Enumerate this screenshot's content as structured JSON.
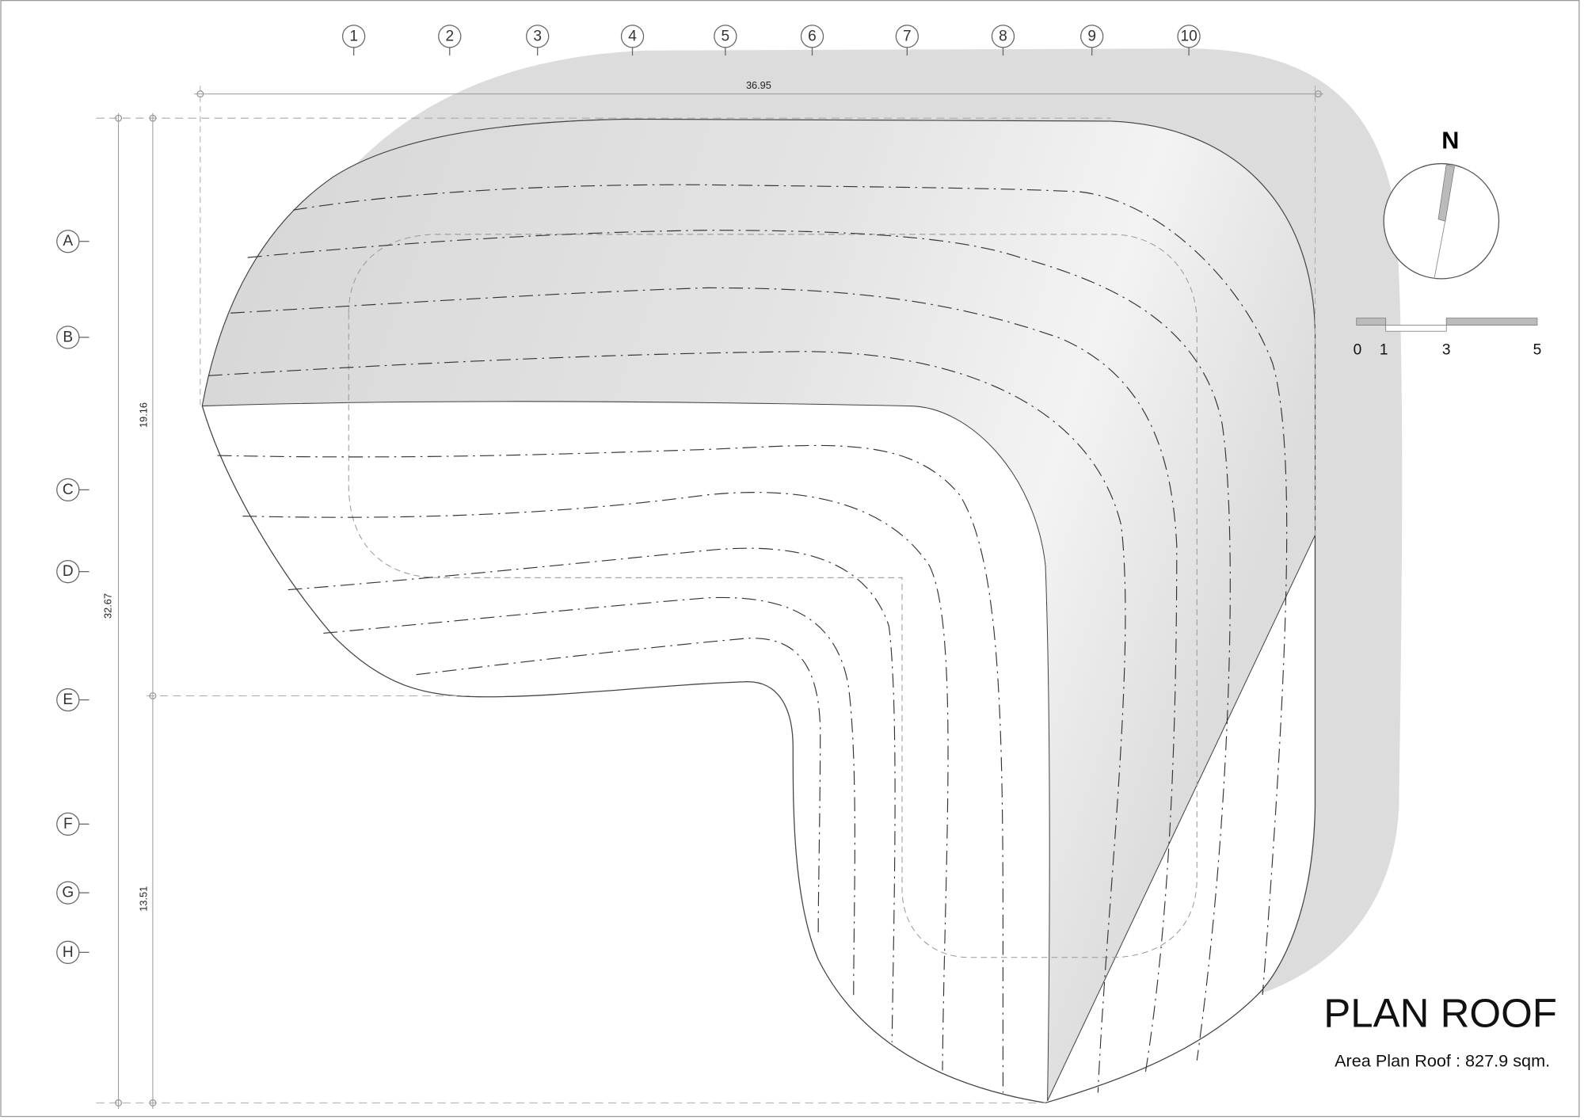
{
  "title": "PLAN ROOF",
  "area_text": "Area Plan Roof : 827.9 sqm.",
  "north_label": "N",
  "scale_bar": {
    "labels": [
      "0",
      "1",
      "3",
      "5"
    ]
  },
  "grid_columns": [
    "1",
    "2",
    "3",
    "4",
    "5",
    "6",
    "7",
    "8",
    "9",
    "10"
  ],
  "grid_rows": [
    "A",
    "B",
    "C",
    "D",
    "E",
    "F",
    "G",
    "H"
  ],
  "dimensions": {
    "overall_width": "36.95",
    "overall_depth": "32.67",
    "upper_depth": "19.16",
    "lower_depth": "13.51"
  },
  "colors": {
    "roof_shade": "#d9d9d9",
    "shadow": "#dcdcdc",
    "line": "#444444"
  }
}
